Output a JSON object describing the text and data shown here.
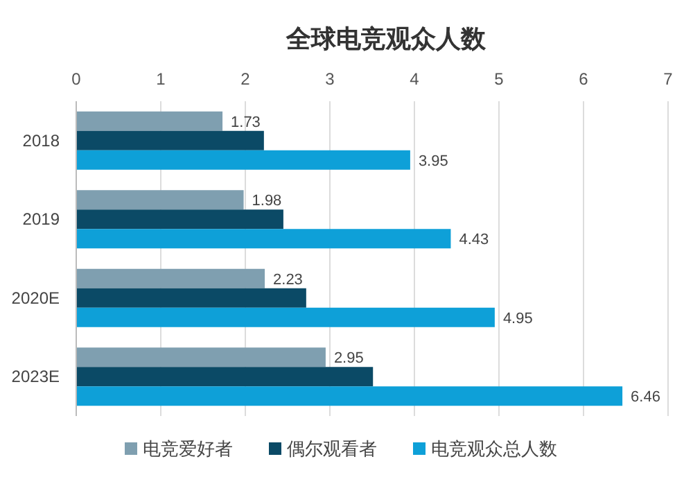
{
  "chart_data": {
    "type": "bar",
    "orientation": "horizontal",
    "title": "全球电竞观众人数",
    "categories": [
      "2018",
      "2019",
      "2020E",
      "2023E"
    ],
    "series": [
      {
        "name": "电竞爱好者",
        "color": "#7f9fb0",
        "values": [
          1.73,
          1.98,
          2.23,
          2.95
        ],
        "value_labels": [
          "1.73",
          "1.98",
          "2.23",
          "2.95"
        ]
      },
      {
        "name": "偶尔观看者",
        "color": "#0b4a66",
        "values": [
          2.22,
          2.45,
          2.72,
          3.51
        ]
      },
      {
        "name": "电竞观众总人数",
        "color": "#0ea0d8",
        "values": [
          3.95,
          4.43,
          4.95,
          6.46
        ],
        "value_labels": [
          "3.95",
          "4.43",
          "4.95",
          "6.46"
        ]
      }
    ],
    "xlim": [
      0,
      7
    ],
    "xticks": [
      0,
      1,
      2,
      3,
      4,
      5,
      6,
      7
    ],
    "grid": "x",
    "legend": "bottom"
  }
}
